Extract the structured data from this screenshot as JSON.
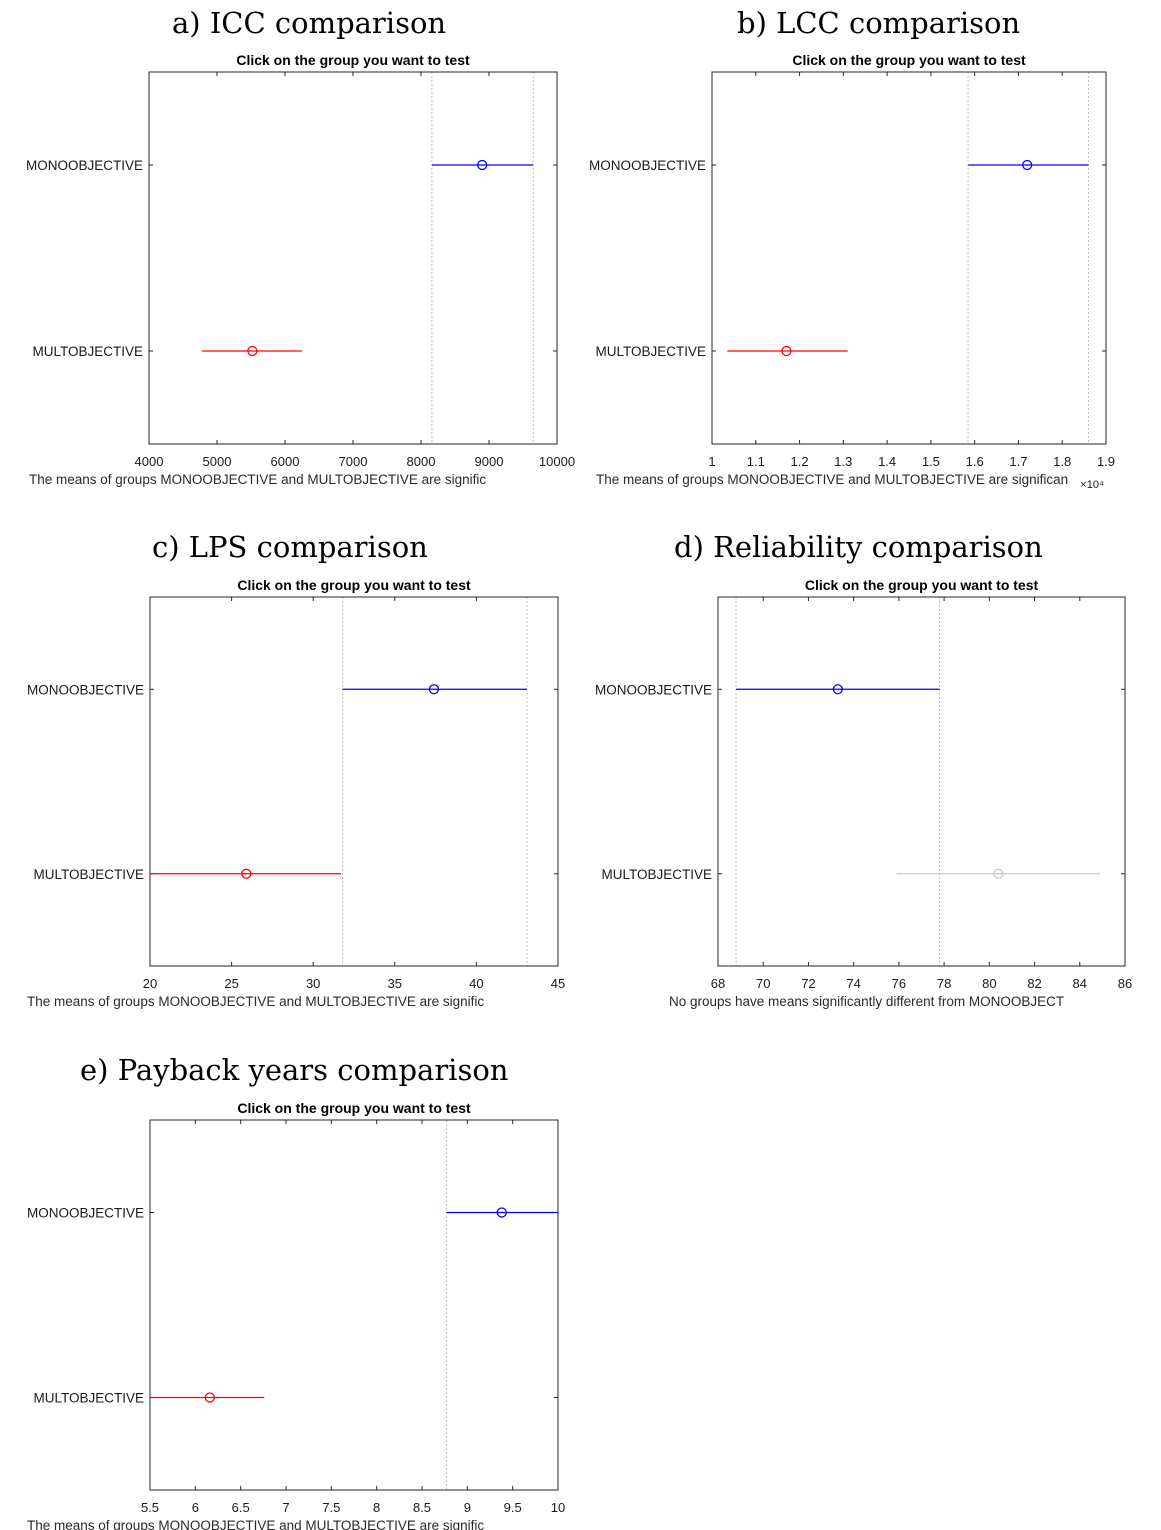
{
  "colors": {
    "selected": "#0000ff",
    "significant": "#ff0000",
    "not_significant": "#c8c8c8",
    "axis": "#262626",
    "ref_line": "#c0c0c0"
  },
  "chart_data": [
    {
      "type": "scatter",
      "panel_title": "a)   ICC comparison",
      "title": "Click on the group you want to test",
      "caption": "The means of groups MONOOBJECTIVE and MULTOBJECTIVE are signific",
      "categories": [
        "MONOOBJECTIVE",
        "MULTOBJECTIVE"
      ],
      "xlim": [
        4000,
        10000
      ],
      "xticks": [
        4000,
        5000,
        6000,
        7000,
        8000,
        9000,
        10000
      ],
      "xtick_labels": [
        "4000",
        "5000",
        "6000",
        "7000",
        "8000",
        "9000",
        "10000"
      ],
      "series": [
        {
          "category": "MONOOBJECTIVE",
          "mean": 8900,
          "lower": 8160,
          "upper": 9650,
          "status": "selected"
        },
        {
          "category": "MULTOBJECTIVE",
          "mean": 5520,
          "lower": 4780,
          "upper": 6250,
          "status": "significant"
        }
      ],
      "ref_lines": [
        8160,
        9650
      ],
      "exponent_label": "",
      "grid": false
    },
    {
      "type": "scatter",
      "panel_title": "b)   LCC comparison",
      "title": "Click on the group you want to test",
      "caption": "The means of groups MONOOBJECTIVE and MULTOBJECTIVE are significan",
      "categories": [
        "MONOOBJECTIVE",
        "MULTOBJECTIVE"
      ],
      "xlim": [
        1.0,
        1.9
      ],
      "xticks": [
        1.0,
        1.1,
        1.2,
        1.3,
        1.4,
        1.5,
        1.6,
        1.7,
        1.8,
        1.9
      ],
      "xtick_labels": [
        "1",
        "1.1",
        "1.2",
        "1.3",
        "1.4",
        "1.5",
        "1.6",
        "1.7",
        "1.8",
        "1.9"
      ],
      "series": [
        {
          "category": "MONOOBJECTIVE",
          "mean": 1.72,
          "lower": 1.585,
          "upper": 1.86,
          "status": "selected"
        },
        {
          "category": "MULTOBJECTIVE",
          "mean": 1.17,
          "lower": 1.035,
          "upper": 1.31,
          "status": "significant"
        }
      ],
      "ref_lines": [
        1.585,
        1.86
      ],
      "exponent_label": "×10⁴",
      "grid": false
    },
    {
      "type": "scatter",
      "panel_title": "c) LPS comparison",
      "title": "Click on the group you want to test",
      "caption": "The means of groups MONOOBJECTIVE and MULTOBJECTIVE are signific",
      "categories": [
        "MONOOBJECTIVE",
        "MULTOBJECTIVE"
      ],
      "xlim": [
        20,
        45
      ],
      "xticks": [
        20,
        25,
        30,
        35,
        40,
        45
      ],
      "xtick_labels": [
        "20",
        "25",
        "30",
        "35",
        "40",
        "45"
      ],
      "series": [
        {
          "category": "MONOOBJECTIVE",
          "mean": 37.4,
          "lower": 31.8,
          "upper": 43.1,
          "status": "selected"
        },
        {
          "category": "MULTOBJECTIVE",
          "mean": 25.9,
          "lower": 20.0,
          "upper": 31.7,
          "status": "significant"
        }
      ],
      "ref_lines": [
        31.8,
        43.1
      ],
      "exponent_label": "",
      "grid": false
    },
    {
      "type": "scatter",
      "panel_title": "d) Reliability comparison",
      "title": "Click on the group you want to test",
      "caption": "No groups have means significantly different from MONOOBJECT",
      "categories": [
        "MONOOBJECTIVE",
        "MULTOBJECTIVE"
      ],
      "xlim": [
        68,
        86
      ],
      "xticks": [
        68,
        70,
        72,
        74,
        76,
        78,
        80,
        82,
        84,
        86
      ],
      "xtick_labels": [
        "68",
        "70",
        "72",
        "74",
        "76",
        "78",
        "80",
        "82",
        "84",
        "86"
      ],
      "series": [
        {
          "category": "MONOOBJECTIVE",
          "mean": 73.3,
          "lower": 68.8,
          "upper": 77.8,
          "status": "selected"
        },
        {
          "category": "MULTOBJECTIVE",
          "mean": 80.4,
          "lower": 75.9,
          "upper": 84.9,
          "status": "not_significant"
        }
      ],
      "ref_lines": [
        68.8,
        77.8
      ],
      "exponent_label": "",
      "grid": false
    },
    {
      "type": "scatter",
      "panel_title": "e) Payback years comparison",
      "title": "Click on the group you want to test",
      "caption": "The means of groups MONOOBJECTIVE and MULTOBJECTIVE are signific",
      "categories": [
        "MONOOBJECTIVE",
        "MULTOBJECTIVE"
      ],
      "xlim": [
        5.5,
        10
      ],
      "xticks": [
        5.5,
        6,
        6.5,
        7,
        7.5,
        8,
        8.5,
        9,
        9.5,
        10
      ],
      "xtick_labels": [
        "5.5",
        "6",
        "6.5",
        "7",
        "7.5",
        "8",
        "8.5",
        "9",
        "9.5",
        "10"
      ],
      "series": [
        {
          "category": "MONOOBJECTIVE",
          "mean": 9.38,
          "lower": 8.77,
          "upper": 10.0,
          "status": "selected"
        },
        {
          "category": "MULTOBJECTIVE",
          "mean": 6.16,
          "lower": 5.5,
          "upper": 6.76,
          "status": "significant"
        }
      ],
      "ref_lines": [
        8.77
      ],
      "exponent_label": "",
      "grid": false
    }
  ]
}
